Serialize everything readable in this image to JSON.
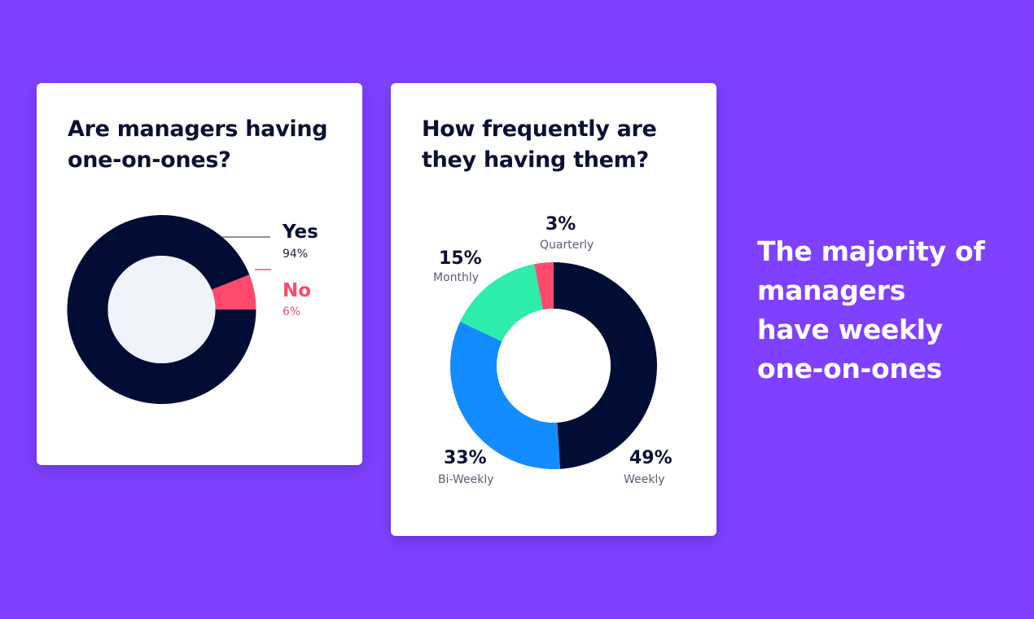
{
  "colors": {
    "background": "#7f41ff",
    "navy": "#020d35",
    "pink": "#ff4a6e",
    "green": "#2ceeaa",
    "blue": "#138cff",
    "inner_light": "#f1f3fb"
  },
  "headline": {
    "lines": [
      "The majority of",
      "managers",
      "have weekly",
      "one-on-ones"
    ]
  },
  "chart_data": [
    {
      "type": "pie",
      "title": "Are managers having one-on-ones?",
      "labels": [
        "Yes",
        "No"
      ],
      "values": [
        94,
        6
      ],
      "value_labels": [
        "94%",
        "6%"
      ],
      "colors": [
        "#020d35",
        "#ff4a6e"
      ],
      "legend": "right"
    },
    {
      "type": "pie",
      "title": "How frequently are they having them?",
      "labels": [
        "Weekly",
        "Bi-Weekly",
        "Monthly",
        "Quarterly"
      ],
      "values": [
        49,
        33,
        15,
        3
      ],
      "value_labels": [
        "49%",
        "33%",
        "15%",
        "3%"
      ],
      "colors": [
        "#020d35",
        "#138cff",
        "#2ceeaa",
        "#ff4a6e"
      ],
      "legend": "around"
    }
  ]
}
